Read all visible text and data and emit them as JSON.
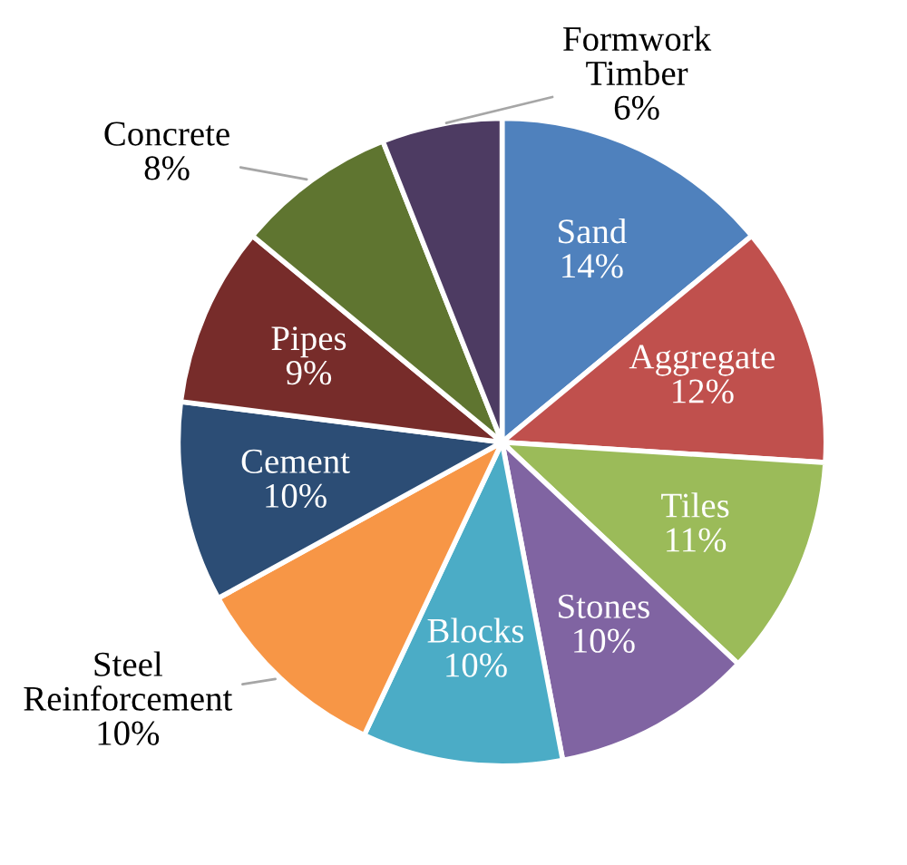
{
  "chart_data": {
    "type": "pie",
    "categories": [
      "Sand",
      "Aggregate",
      "Tiles",
      "Stones",
      "Blocks",
      "Steel Reinforcement",
      "Cement",
      "Pipes",
      "Concrete",
      "Formwork Timber"
    ],
    "values": [
      14,
      12,
      11,
      10,
      10,
      10,
      10,
      9,
      8,
      6
    ],
    "colors": [
      "#4f81bd",
      "#c0504d",
      "#9bbb59",
      "#8064a2",
      "#4bacc6",
      "#f79646",
      "#2c4d75",
      "#772c2a",
      "#5f7530",
      "#4d3b62"
    ],
    "value_labels": [
      "14%",
      "12%",
      "11%",
      "10%",
      "10%",
      "10%",
      "10%",
      "9%",
      "8%",
      "6%"
    ],
    "legend": false
  }
}
